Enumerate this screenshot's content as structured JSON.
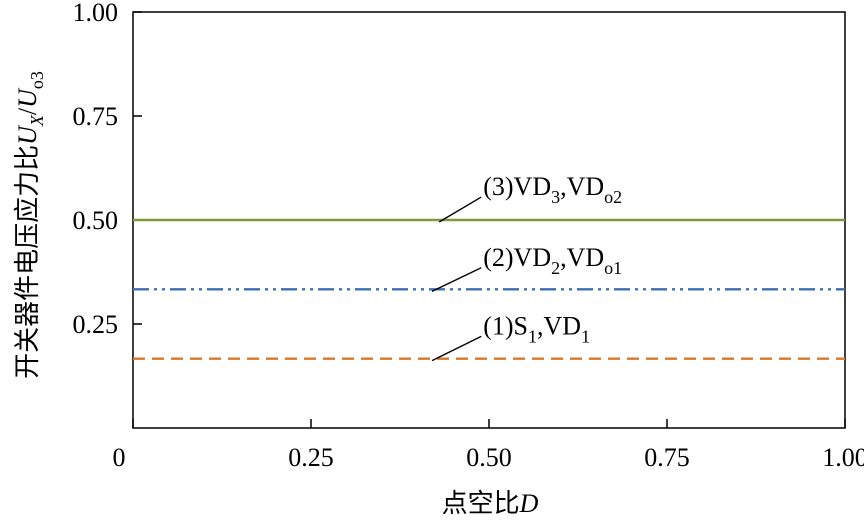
{
  "chart_data": {
    "type": "line",
    "title": "",
    "xlabel": "点空比D",
    "xlabel_parts": {
      "cjk": "点空比",
      "var": "D"
    },
    "ylabel": "开关器件电压应力比U_X/U_o3",
    "ylabel_parts": {
      "cjk": "开关器件电压应力比",
      "u1": "U",
      "sub1": "X",
      "slash": "/",
      "u2": "U",
      "sub2": "o3"
    },
    "xlim": [
      0,
      1.0
    ],
    "ylim": [
      0,
      1.0
    ],
    "xticks": [
      0,
      0.25,
      0.5,
      0.75,
      1.0
    ],
    "xtick_labels": [
      "0",
      "0.25",
      "0.50",
      "0.75",
      "1.00"
    ],
    "yticks": [
      0.25,
      0.5,
      0.75,
      1.0
    ],
    "ytick_labels": [
      "0.25",
      "0.50",
      "0.75",
      "1.00"
    ],
    "grid": false,
    "series": [
      {
        "name": "(1)S1,VD1",
        "label_parts": [
          [
            "(1)S",
            ""
          ],
          [
            "1",
            "sub"
          ],
          [
            ",VD",
            ""
          ],
          [
            "1",
            "sub"
          ]
        ],
        "x": [
          0,
          1.0
        ],
        "values": [
          0.1667,
          0.1667
        ],
        "color": "#d9782b",
        "style": "dashed",
        "annotation": {
          "x": 0.42,
          "y": 0.1667,
          "text_x": 0.52,
          "text_y": 0.225
        }
      },
      {
        "name": "(2)VD2,VDo1",
        "label_parts": [
          [
            "(2)VD",
            ""
          ],
          [
            "2",
            "sub"
          ],
          [
            ",VD",
            ""
          ],
          [
            "o1",
            "sub"
          ]
        ],
        "x": [
          0,
          1.0
        ],
        "values": [
          0.3333,
          0.3333
        ],
        "color": "#3d6fb5",
        "style": "dash-dot-dot",
        "annotation": {
          "x": 0.42,
          "y": 0.3333,
          "text_x": 0.52,
          "text_y": 0.39
        }
      },
      {
        "name": "(3)VD3,VDo2",
        "label_parts": [
          [
            "(3)VD",
            ""
          ],
          [
            "3",
            "sub"
          ],
          [
            ",VD",
            ""
          ],
          [
            "o2",
            "sub"
          ]
        ],
        "x": [
          0,
          1.0
        ],
        "values": [
          0.5,
          0.5
        ],
        "color": "#7f9a3c",
        "style": "solid",
        "annotation": {
          "x": 0.43,
          "y": 0.5,
          "text_x": 0.52,
          "text_y": 0.56
        }
      }
    ]
  }
}
